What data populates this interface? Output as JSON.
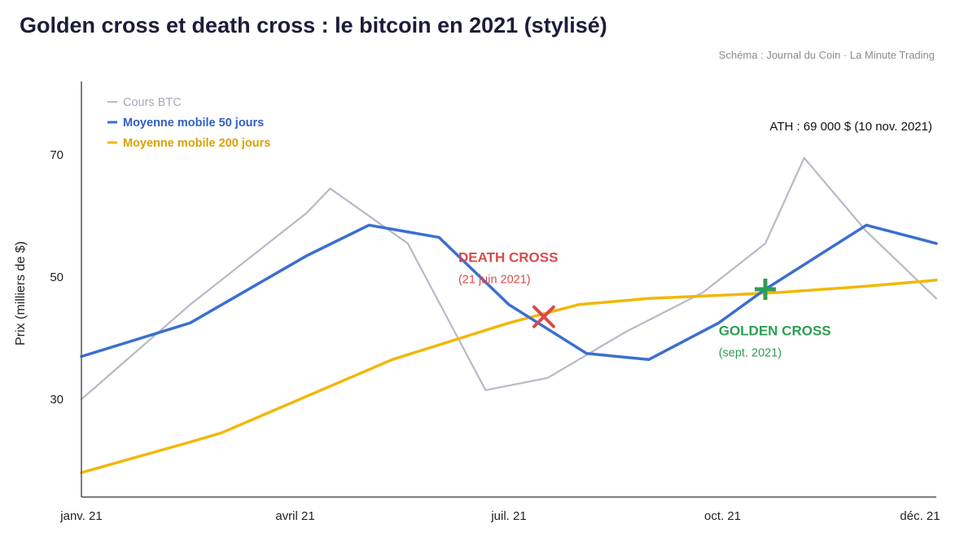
{
  "title": "Golden cross et death cross : le bitcoin en 2021 (stylisé)",
  "source": "Schéma : Journal du Coin · La Minute Trading",
  "chart_data": {
    "type": "line",
    "ylabel": "Prix (milliers de $)",
    "xlabel": "",
    "x_ticks": [
      "janv. 21",
      "avril 21",
      "juil. 21",
      "oct. 21",
      "déc. 21"
    ],
    "y_ticks": [
      30,
      50,
      70
    ],
    "xlim": [
      0,
      11
    ],
    "ylim": [
      14,
      82
    ],
    "grid": false,
    "legend_position": "top-left",
    "series": [
      {
        "name": "Cours BTC",
        "color": "#b9b8c8",
        "bold": false,
        "x": [
          0,
          1.4,
          2.9,
          3.2,
          4.2,
          5.2,
          6.0,
          7.0,
          8.0,
          8.8,
          9.3,
          10.1,
          11
        ],
        "y": [
          30,
          45.5,
          60.5,
          64.5,
          55.5,
          31.5,
          33.5,
          41,
          47.5,
          55.5,
          69.5,
          57.5,
          46.5
        ]
      },
      {
        "name": "Moyenne mobile 50 jours",
        "color": "#3a6fd0",
        "bold": true,
        "x": [
          0,
          1.4,
          2.9,
          3.7,
          4.6,
          5.5,
          6.5,
          7.3,
          8.2,
          8.8,
          10.1,
          11
        ],
        "y": [
          37,
          42.5,
          53.5,
          58.5,
          56.5,
          45.5,
          37.5,
          36.5,
          42.5,
          48,
          58.5,
          55.5
        ]
      },
      {
        "name": "Moyenne mobile 200 jours",
        "color": "#f2b705",
        "bold": true,
        "x": [
          0,
          1.4,
          1.8,
          2.9,
          4.0,
          5.5,
          6.4,
          7.3,
          8.2,
          9.0,
          10.1,
          11
        ],
        "y": [
          18,
          23,
          24.5,
          30.5,
          36.5,
          42.5,
          45.5,
          46.5,
          47,
          47.5,
          48.5,
          49.5
        ]
      }
    ],
    "annotations": [
      {
        "label": "DEATH CROSS",
        "sublabel": "(21 juin 2021)",
        "color": "#d94a4a",
        "marker": "×",
        "x": 5.95,
        "y": 43.5,
        "label_x": 4.85,
        "label_y": 52.5
      },
      {
        "label": "GOLDEN CROSS",
        "sublabel": "(sept. 2021)",
        "color": "#2e9e55",
        "marker": "+",
        "x": 8.8,
        "y": 48,
        "label_x": 8.2,
        "label_y": 40.5
      }
    ],
    "ath_note": "ATH : 69 000 $ (10 nov. 2021)"
  }
}
